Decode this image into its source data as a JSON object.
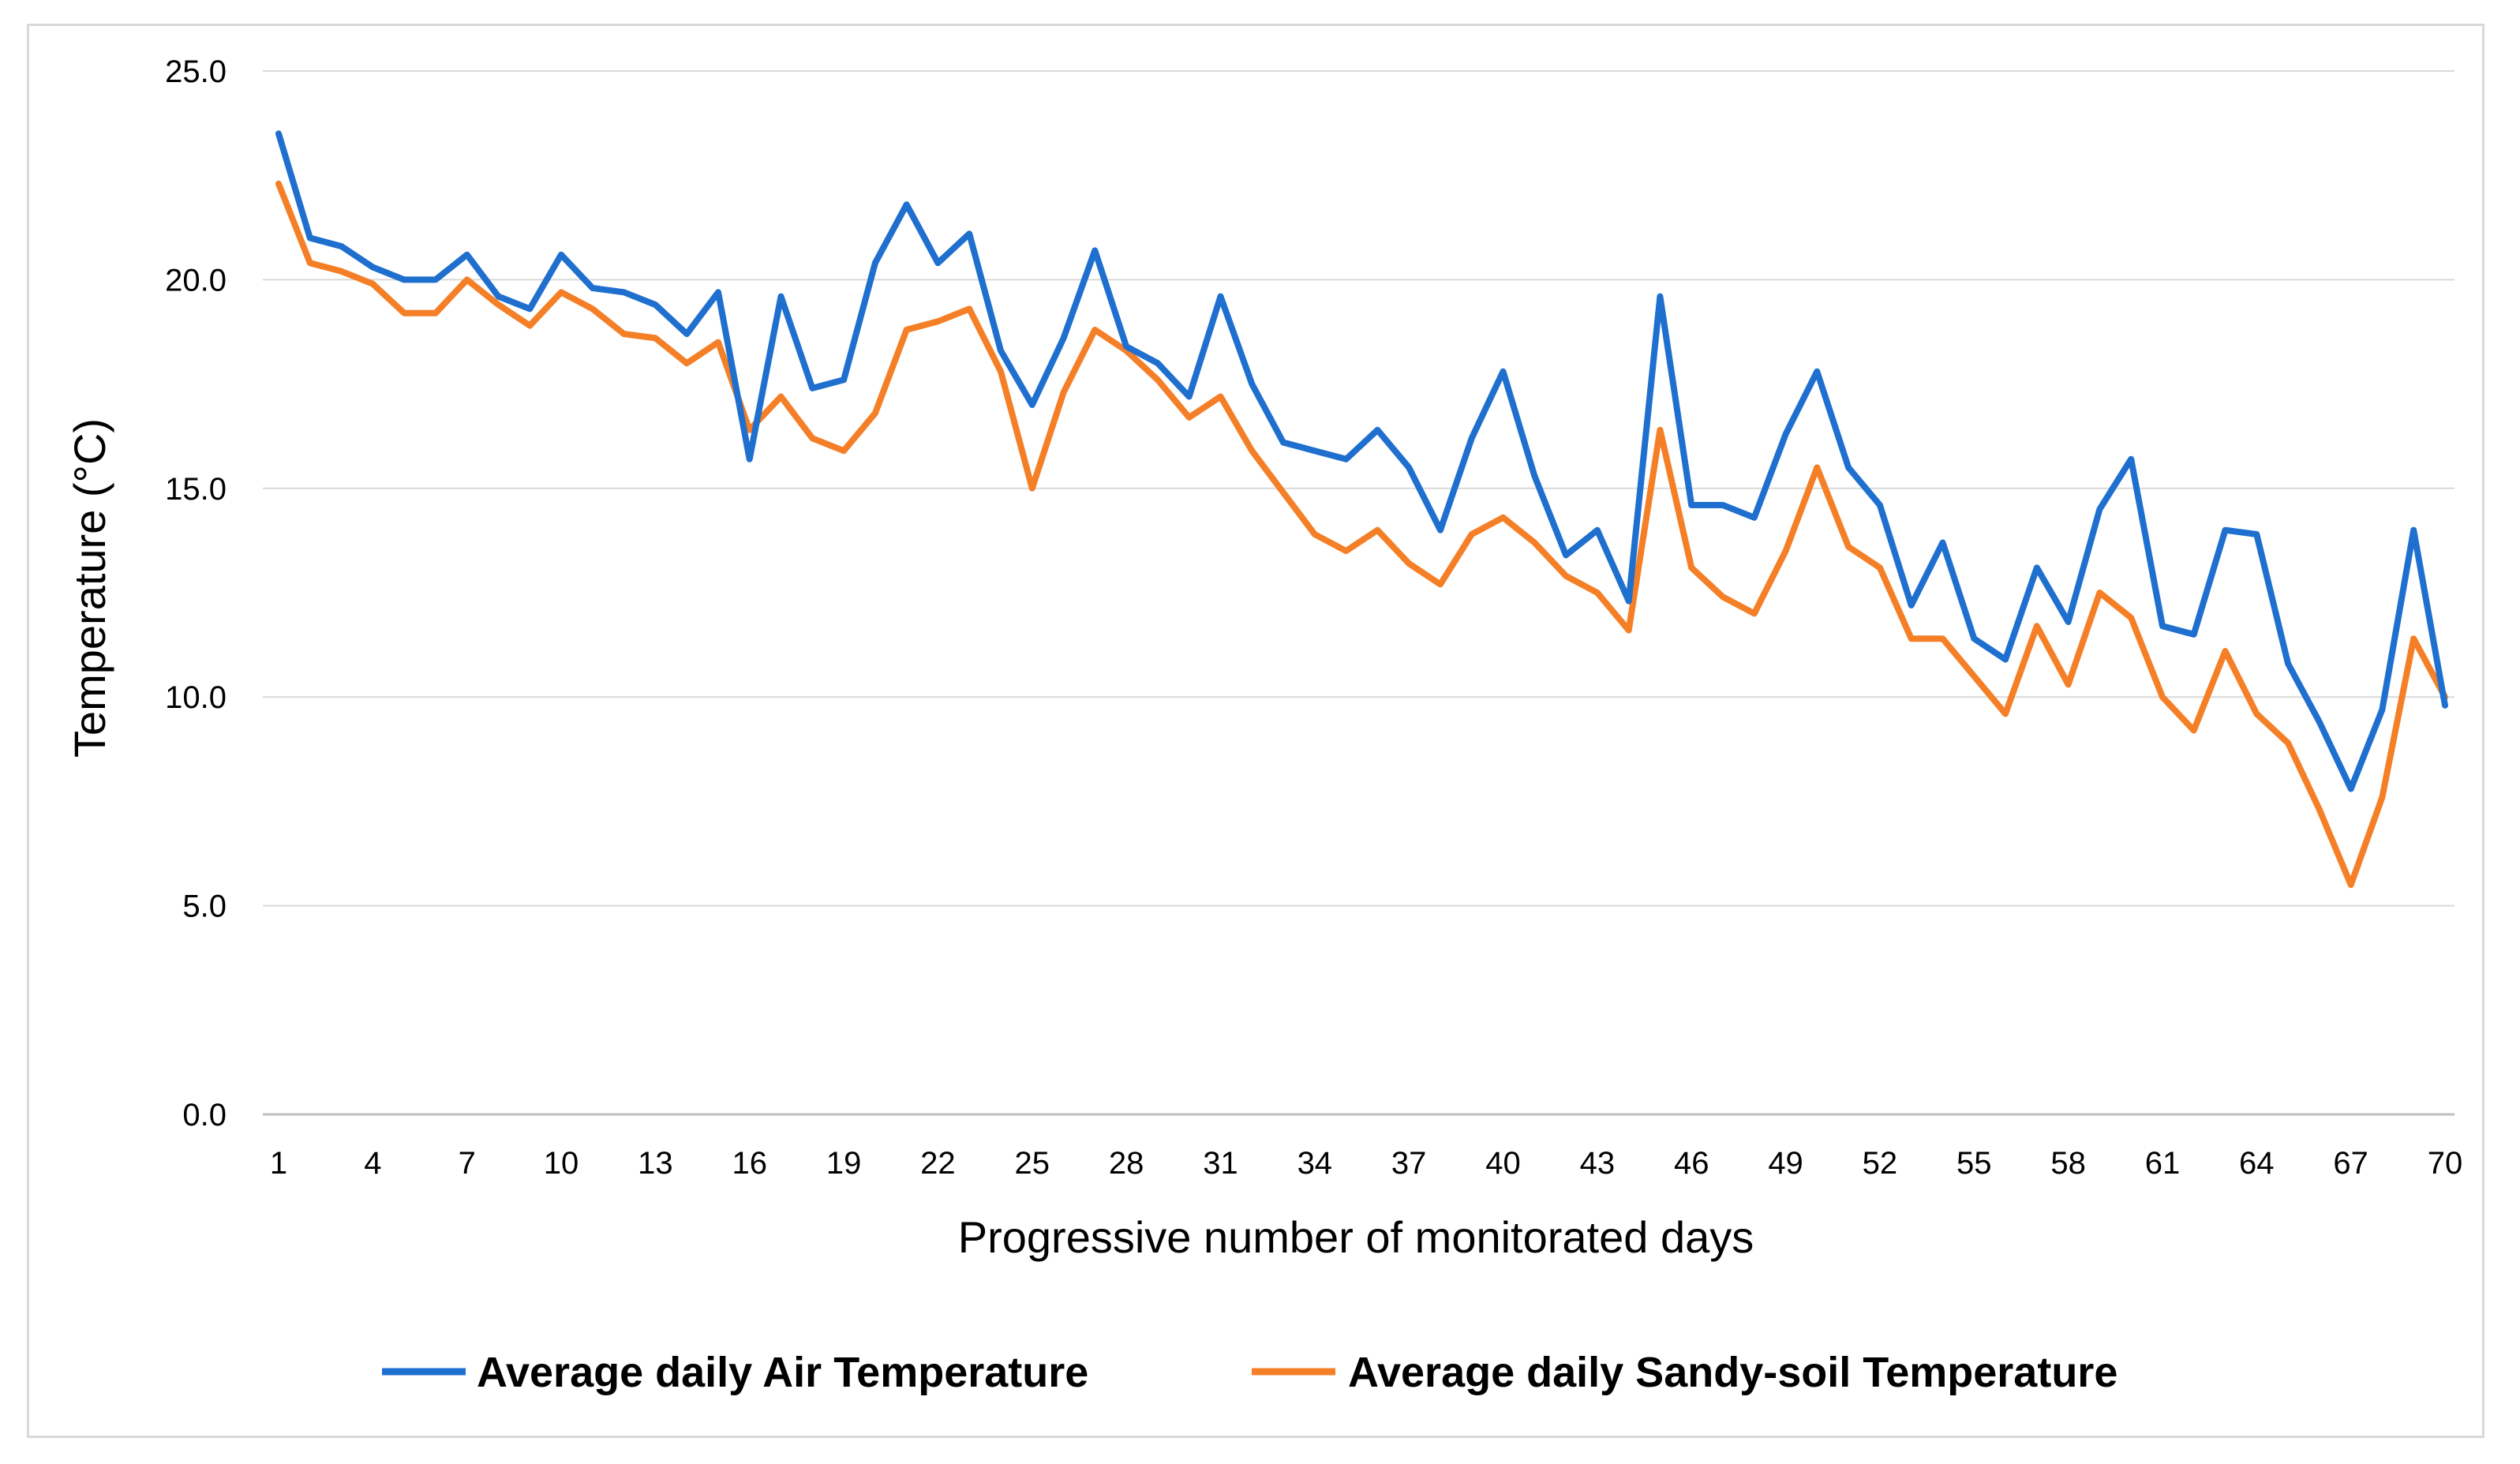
{
  "chart_data": {
    "type": "line",
    "title": "",
    "xlabel": "Progressive number of monitorated days",
    "ylabel": "Temperature (°C)",
    "ylim": [
      0,
      25
    ],
    "yticks": [
      0,
      5,
      10,
      15,
      20,
      25
    ],
    "ytick_labels": [
      "0.0",
      "5.0",
      "10.0",
      "15.0",
      "20.0",
      "25.0"
    ],
    "xlim": [
      1,
      70
    ],
    "xtick_labels": [
      "1",
      "4",
      "7",
      "10",
      "13",
      "16",
      "19",
      "22",
      "25",
      "28",
      "31",
      "34",
      "37",
      "40",
      "43",
      "46",
      "49",
      "52",
      "55",
      "58",
      "61",
      "64",
      "67",
      "70"
    ],
    "grid": "horizontal",
    "legend_position": "bottom",
    "x": [
      1,
      2,
      3,
      4,
      5,
      6,
      7,
      8,
      9,
      10,
      11,
      12,
      13,
      14,
      15,
      16,
      17,
      18,
      19,
      20,
      21,
      22,
      23,
      24,
      25,
      26,
      27,
      28,
      29,
      30,
      31,
      32,
      33,
      34,
      35,
      36,
      37,
      38,
      39,
      40,
      41,
      42,
      43,
      44,
      45,
      46,
      47,
      48,
      49,
      50,
      51,
      52,
      53,
      54,
      55,
      56,
      57,
      58,
      59,
      60,
      61,
      62,
      63,
      64,
      65,
      66,
      67,
      68,
      69,
      70
    ],
    "series": [
      {
        "name": "Average daily Air Temperature",
        "color": "#1f6fcf",
        "values": [
          23.5,
          21.0,
          20.8,
          20.3,
          20.0,
          20.0,
          20.6,
          19.6,
          19.3,
          20.6,
          19.8,
          19.7,
          19.4,
          18.7,
          19.7,
          15.7,
          19.6,
          17.4,
          17.6,
          20.4,
          21.8,
          20.4,
          21.1,
          18.3,
          17.0,
          18.6,
          20.7,
          18.4,
          18.0,
          17.2,
          19.6,
          17.5,
          16.1,
          15.9,
          15.7,
          16.4,
          15.5,
          14.0,
          16.2,
          17.8,
          15.3,
          13.4,
          14.0,
          12.3,
          19.6,
          14.6,
          14.6,
          14.3,
          16.3,
          17.8,
          15.5,
          14.6,
          12.2,
          13.7,
          11.4,
          10.9,
          13.1,
          11.8,
          14.5,
          15.7,
          11.7,
          11.5,
          14.0,
          13.9,
          10.8,
          9.4,
          7.8,
          9.7,
          14.0,
          9.8
        ]
      },
      {
        "name": "Average daily Sandy-soil Temperature",
        "color": "#f47f27",
        "values": [
          22.3,
          20.4,
          20.2,
          19.9,
          19.2,
          19.2,
          20.0,
          19.4,
          18.9,
          19.7,
          19.3,
          18.7,
          18.6,
          18.0,
          18.5,
          16.4,
          17.2,
          16.2,
          15.9,
          16.8,
          18.8,
          19.0,
          19.3,
          17.8,
          15.0,
          17.3,
          18.8,
          18.3,
          17.6,
          16.7,
          17.2,
          15.9,
          14.9,
          13.9,
          13.5,
          14.0,
          13.2,
          12.7,
          13.9,
          14.3,
          13.7,
          12.9,
          12.5,
          11.6,
          16.4,
          13.1,
          12.4,
          12.0,
          13.5,
          15.5,
          13.6,
          13.1,
          11.4,
          11.4,
          10.5,
          9.6,
          11.7,
          10.3,
          12.5,
          11.9,
          10.0,
          9.2,
          11.1,
          9.6,
          8.9,
          7.3,
          5.5,
          7.6,
          11.4,
          10.0
        ]
      }
    ]
  }
}
